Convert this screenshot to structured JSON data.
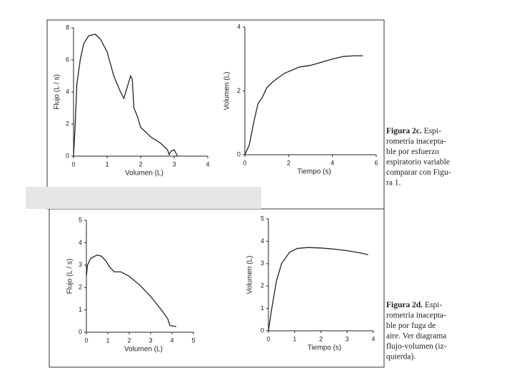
{
  "chart_data": [
    {
      "type": "line",
      "x_label": "Volumen (L)",
      "y_label": "Flujo (L / s)",
      "color": "#222222",
      "xlim": [
        0,
        4
      ],
      "xticks": [
        0,
        1,
        2,
        3,
        4
      ],
      "ylim": [
        0,
        8
      ],
      "yticks": [
        0,
        2,
        4,
        6,
        8
      ],
      "x": [
        0,
        0.05,
        0.1,
        0.2,
        0.3,
        0.45,
        0.65,
        0.8,
        1.0,
        1.2,
        1.4,
        1.5,
        1.6,
        1.7,
        1.75,
        1.8,
        1.9,
        2.0,
        2.3,
        2.6,
        2.8,
        2.85,
        2.9,
        3.0,
        3.05,
        3.1
      ],
      "values": [
        0,
        2,
        4.5,
        6,
        7,
        7.5,
        7.6,
        7.3,
        6.5,
        5,
        4,
        3.6,
        4.3,
        5,
        4.8,
        3,
        2.5,
        1.8,
        1.2,
        0.8,
        0.4,
        0.1,
        0.3,
        0.4,
        0.2,
        0
      ]
    },
    {
      "type": "line",
      "x_label": "Tiempo (s)",
      "y_label": "Volumen (L)",
      "color": "#222222",
      "xlim": [
        0,
        6
      ],
      "xticks": [
        0,
        2,
        4,
        6
      ],
      "ylim": [
        0,
        4
      ],
      "yticks": [
        0,
        2,
        4
      ],
      "x": [
        0,
        0.2,
        0.4,
        0.6,
        0.8,
        1.0,
        1.3,
        1.8,
        2.5,
        3,
        3.5,
        4,
        4.5,
        5,
        5.4
      ],
      "values": [
        0,
        0.3,
        1,
        1.6,
        1.8,
        2.1,
        2.3,
        2.55,
        2.75,
        2.8,
        2.9,
        3.0,
        3.08,
        3.1,
        3.1
      ]
    },
    {
      "type": "line",
      "x_label": "Volumen (L)",
      "y_label": "Flujo (L / s)",
      "color": "#222222",
      "xlim": [
        0,
        5
      ],
      "xticks": [
        0,
        1,
        2,
        3,
        4,
        5
      ],
      "ylim": [
        0,
        5
      ],
      "yticks": [
        0,
        1,
        2,
        3,
        4,
        5
      ],
      "x": [
        0,
        0.05,
        0.2,
        0.5,
        0.7,
        0.9,
        1.1,
        1.3,
        1.6,
        2,
        2.5,
        3,
        3.5,
        3.8,
        3.9,
        4.2
      ],
      "values": [
        2.5,
        3,
        3.3,
        3.45,
        3.4,
        3.2,
        2.9,
        2.7,
        2.7,
        2.5,
        2.1,
        1.6,
        1.0,
        0.6,
        0.3,
        0.25
      ]
    },
    {
      "type": "line",
      "x_label": "Tiempo (s)",
      "y_label": "Volumen (L)",
      "color": "#222222",
      "xlim": [
        0,
        4
      ],
      "xticks": [
        0,
        1,
        2,
        3,
        4
      ],
      "ylim": [
        0,
        5
      ],
      "yticks": [
        0,
        1,
        2,
        3,
        4,
        5
      ],
      "x": [
        0,
        0.1,
        0.3,
        0.5,
        0.8,
        1.1,
        1.5,
        2,
        2.5,
        3,
        3.5,
        3.8
      ],
      "values": [
        0,
        0.8,
        2.2,
        3,
        3.5,
        3.68,
        3.72,
        3.7,
        3.65,
        3.58,
        3.48,
        3.4
      ]
    }
  ],
  "captions": [
    {
      "label": "Figura 2c.",
      "lines": [
        "Espi-",
        "rometría inacepta-",
        "ble por esfuerzo",
        "espiratorio variable",
        "comparar con Figu-",
        "ra 1."
      ]
    },
    {
      "label": "Figura 2d.",
      "lines": [
        "Espi-",
        "rometría inacepta-",
        "ble por fuga de",
        "aire. Ver diagrama",
        "flujo-volumen (iz-",
        "quierda)."
      ]
    }
  ]
}
